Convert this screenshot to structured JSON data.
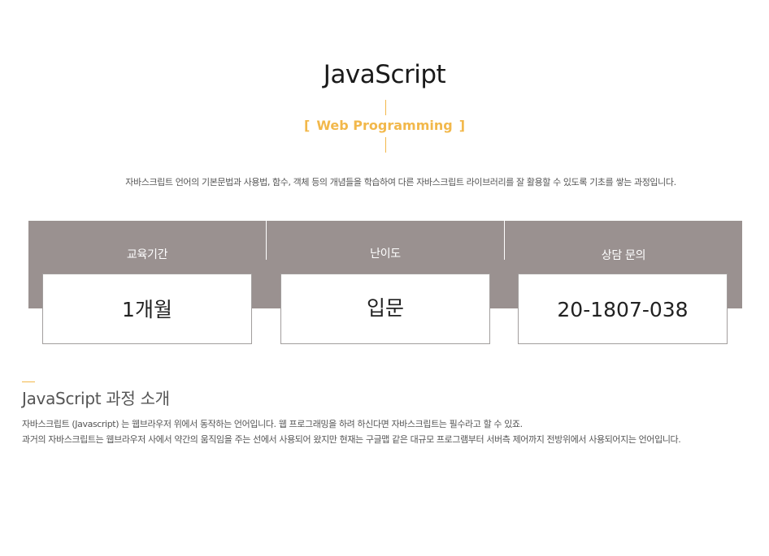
{
  "header": {
    "title": "JavaScript",
    "subtitle_open": "[",
    "subtitle": "Web Programming",
    "subtitle_close": "]"
  },
  "intro": "자바스크립트 언어의 기본문법과 사용법, 함수, 객체 등의 개념들을 학습하여 다른 자바스크립트 라이브러리를 잘 활용할 수 있도록 기초를 쌓는 과정입니다.",
  "info": [
    {
      "label": "교육기간",
      "value": "1개월"
    },
    {
      "label": "난이도",
      "value": "입문"
    },
    {
      "label": "상담 문의",
      "value": "20-1807-038"
    }
  ],
  "section": {
    "title": "JavaScript 과정 소개",
    "lines": [
      "자바스크립트 (Javascript) 는 웹브라우저 위에서 동작하는 언어입니다. 웹 프로그래밍을 하려 하신다면 자바스크립트는 필수라고 할 수 있죠.",
      "과거의 자바스크립트는 웹브라우저 사에서 약간의 움직임을 주는 선에서 사용되어 왔지만 현재는 구글맵 같은 대규모 프로그램부터 서버측 제어까지 전방위에서 사용되어지는 언어입니다."
    ]
  },
  "colors": {
    "accent": "#f2b84b",
    "info_bar": "#9a9190"
  }
}
